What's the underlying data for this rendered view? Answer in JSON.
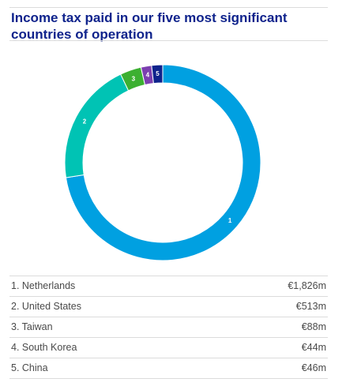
{
  "title": "Income tax paid in our five most significant countries of operation",
  "chart_data": {
    "type": "pie",
    "style": "donut",
    "slices": [
      {
        "marker": "1",
        "label": "1. Netherlands",
        "name": "Netherlands",
        "value": 1826,
        "display": "€1,826m",
        "color": "#00a0e1"
      },
      {
        "marker": "2",
        "label": "2. United States",
        "name": "United States",
        "value": 513,
        "display": "€513m",
        "color": "#00c3b4"
      },
      {
        "marker": "3",
        "label": "3. Taiwan",
        "name": "Taiwan",
        "value": 88,
        "display": "€88m",
        "color": "#3cb031"
      },
      {
        "marker": "4",
        "label": "4. South Korea",
        "name": "South Korea",
        "value": 44,
        "display": "€44m",
        "color": "#7c3fb0"
      },
      {
        "marker": "5",
        "label": "5. China",
        "name": "China",
        "value": 46,
        "display": "€46m",
        "color": "#0f238c"
      }
    ]
  }
}
